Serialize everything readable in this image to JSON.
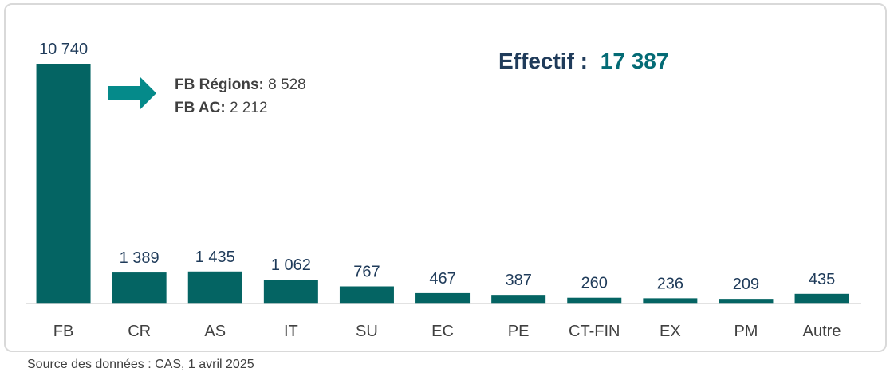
{
  "chart_data": {
    "type": "bar",
    "categories": [
      "FB",
      "CR",
      "AS",
      "IT",
      "SU",
      "EC",
      "PE",
      "CT-FIN",
      "EX",
      "PM",
      "Autre"
    ],
    "values": [
      10740,
      1389,
      1435,
      1062,
      767,
      467,
      387,
      260,
      236,
      209,
      435
    ],
    "value_labels": [
      "10 740",
      "1 389",
      "1 435",
      "1 062",
      "767",
      "467",
      "387",
      "260",
      "236",
      "209",
      "435"
    ],
    "ylim": [
      0,
      10740
    ],
    "grid": false,
    "bar_color": "#046463",
    "title_label": "Effectif :",
    "title_value": "17 387",
    "title_label_color": "#1f3b5a",
    "title_value_color": "#046b75",
    "annotation": {
      "lines": [
        {
          "label": "FB Régions:",
          "value": " 8 528"
        },
        {
          "label": "FB AC:",
          "value": " 2 212"
        }
      ],
      "arrow_color": "#058a8a"
    }
  },
  "source": "Source des données : CAS, 1 avril 2025"
}
